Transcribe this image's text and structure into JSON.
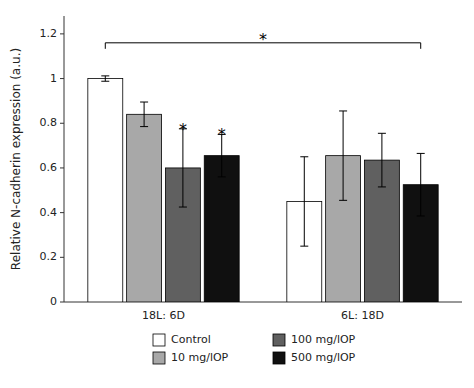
{
  "chart_data": {
    "type": "bar",
    "categories": [
      "18L: 6D",
      "6L: 18D"
    ],
    "series": [
      {
        "name": "Control",
        "color": "#ffffff",
        "values": [
          1.0,
          0.45
        ],
        "errors": [
          0.012,
          0.2
        ]
      },
      {
        "name": "10 mg/lOP",
        "color": "#a8a8a8",
        "values": [
          0.84,
          0.655
        ],
        "errors": [
          0.055,
          0.2
        ]
      },
      {
        "name": "100 mg/lOP",
        "color": "#606060",
        "values": [
          0.6,
          0.635
        ],
        "errors": [
          0.175,
          0.12
        ]
      },
      {
        "name": "500 mg/lOP",
        "color": "#101010",
        "values": [
          0.655,
          0.525
        ],
        "errors": [
          0.095,
          0.14
        ]
      }
    ],
    "ylabel": "Relative N-cadherin expression (a.u.)",
    "ylim": [
      0,
      1.28
    ],
    "yticks": [
      0,
      0.2,
      0.4,
      0.6,
      0.8,
      1,
      1.2
    ],
    "grid": false,
    "legend": "bottom",
    "annotations": [
      {
        "text": "*",
        "series": 2,
        "category": 0
      },
      {
        "text": "*",
        "series": 3,
        "category": 0
      },
      {
        "text": "*",
        "from": {
          "series": 0,
          "category": 0
        },
        "to": {
          "series": 3,
          "category": 1
        },
        "y": 1.16
      }
    ]
  }
}
